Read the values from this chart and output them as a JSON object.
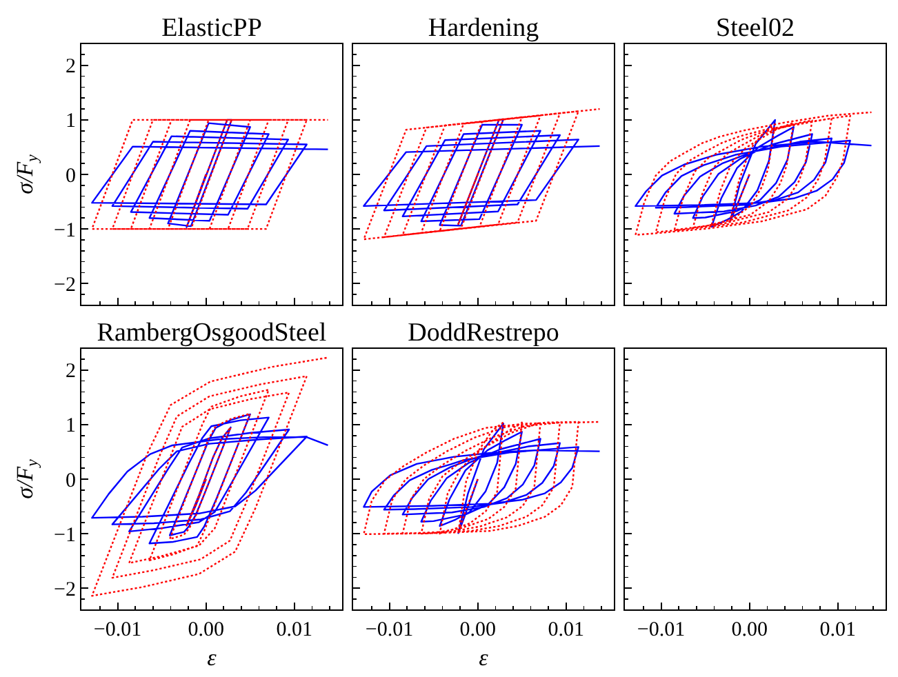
{
  "chart_data": [
    {
      "type": "line",
      "title": "ElasticPP",
      "ylabel": "σ/F$_{y}$",
      "tick_labels": "y",
      "xlim": [
        -0.0141,
        0.0154
      ],
      "ylim": [
        -2.39,
        2.39
      ],
      "xticks": [
        {
          "value": -0.012,
          "label": null
        },
        {
          "value": -0.01,
          "label": null
        },
        {
          "value": -0.008,
          "label": null
        },
        {
          "value": -0.006,
          "label": null
        },
        {
          "value": -0.004,
          "label": null
        },
        {
          "value": -0.002,
          "label": null
        },
        {
          "value": 0,
          "label": null
        },
        {
          "value": 0.002,
          "label": null
        },
        {
          "value": 0.004,
          "label": null
        },
        {
          "value": 0.006,
          "label": null
        },
        {
          "value": 0.008,
          "label": null
        },
        {
          "value": 0.01,
          "label": null
        },
        {
          "value": 0.012,
          "label": null
        },
        {
          "value": 0.014,
          "label": null
        }
      ],
      "yticks": [
        {
          "value": -2.2,
          "label": null
        },
        {
          "value": -2,
          "label": "−2"
        },
        {
          "value": -1.8,
          "label": null
        },
        {
          "value": -1.6,
          "label": null
        },
        {
          "value": -1.4,
          "label": null
        },
        {
          "value": -1.2,
          "label": null
        },
        {
          "value": -1,
          "label": "−1"
        },
        {
          "value": -0.8,
          "label": null
        },
        {
          "value": -0.6,
          "label": null
        },
        {
          "value": -0.4,
          "label": null
        },
        {
          "value": -0.2,
          "label": null
        },
        {
          "value": 0,
          "label": "0"
        },
        {
          "value": 0.2,
          "label": null
        },
        {
          "value": 0.4,
          "label": null
        },
        {
          "value": 0.6,
          "label": null
        },
        {
          "value": 0.8,
          "label": null
        },
        {
          "value": 1,
          "label": "1"
        },
        {
          "value": 1.2,
          "label": null
        },
        {
          "value": 1.4,
          "label": null
        },
        {
          "value": 1.6,
          "label": null
        },
        {
          "value": 1.8,
          "label": null
        },
        {
          "value": 2,
          "label": "2"
        },
        {
          "value": 2.2,
          "label": null
        }
      ],
      "x": [
        0,
        -0.0022,
        0.0024,
        0.0029,
        -0.0017,
        -0.0043,
        0.0003,
        0.005,
        0.0004,
        -0.0064,
        -0.0018,
        0.0071,
        0.0025,
        -0.0085,
        -0.0039,
        0.0093,
        0.0047,
        -0.0106,
        -0.006,
        0.0114,
        0.0068,
        -0.0129,
        -0.0083,
        0.0138
      ],
      "series": [
        {
          "color": "#0000ff",
          "line_style": "solid",
          "values": [
            0,
            -0.97,
            1,
            1,
            -0.95,
            -0.9,
            0.94,
            0.87,
            -0.85,
            -0.8,
            0.8,
            0.74,
            -0.74,
            -0.69,
            0.7,
            0.64,
            -0.63,
            -0.58,
            0.6,
            0.55,
            -0.55,
            -0.52,
            0.51,
            0.46
          ]
        },
        {
          "color": "#ff0000",
          "line_style": "dotted",
          "values": [
            0,
            -0.97,
            1,
            1,
            -1,
            -1,
            1,
            1,
            -1,
            -1,
            1,
            1,
            -1,
            -1,
            1,
            1,
            -1,
            -1,
            1,
            1,
            -1,
            -1,
            1,
            1
          ]
        }
      ]
    },
    {
      "type": "line",
      "title": "Hardening",
      "tick_labels": false,
      "xlim": [
        -0.0141,
        0.0154
      ],
      "ylim": [
        -2.39,
        2.39
      ],
      "xticks": [
        {
          "value": -0.012,
          "label": null
        },
        {
          "value": -0.01,
          "label": null
        },
        {
          "value": -0.008,
          "label": null
        },
        {
          "value": -0.006,
          "label": null
        },
        {
          "value": -0.004,
          "label": null
        },
        {
          "value": -0.002,
          "label": null
        },
        {
          "value": 0,
          "label": null
        },
        {
          "value": 0.002,
          "label": null
        },
        {
          "value": 0.004,
          "label": null
        },
        {
          "value": 0.006,
          "label": null
        },
        {
          "value": 0.008,
          "label": null
        },
        {
          "value": 0.01,
          "label": null
        },
        {
          "value": 0.012,
          "label": null
        },
        {
          "value": 0.014,
          "label": null
        }
      ],
      "yticks": [
        {
          "value": -2.2,
          "label": null
        },
        {
          "value": -2,
          "label": null
        },
        {
          "value": -1.8,
          "label": null
        },
        {
          "value": -1.6,
          "label": null
        },
        {
          "value": -1.4,
          "label": null
        },
        {
          "value": -1.2,
          "label": null
        },
        {
          "value": -1,
          "label": null
        },
        {
          "value": -0.8,
          "label": null
        },
        {
          "value": -0.6,
          "label": null
        },
        {
          "value": -0.4,
          "label": null
        },
        {
          "value": -0.2,
          "label": null
        },
        {
          "value": 0,
          "label": null
        },
        {
          "value": 0.2,
          "label": null
        },
        {
          "value": 0.4,
          "label": null
        },
        {
          "value": 0.6,
          "label": null
        },
        {
          "value": 0.8,
          "label": null
        },
        {
          "value": 1,
          "label": null
        },
        {
          "value": 1.2,
          "label": null
        },
        {
          "value": 1.4,
          "label": null
        },
        {
          "value": 1.6,
          "label": null
        },
        {
          "value": 1.8,
          "label": null
        },
        {
          "value": 2,
          "label": null
        },
        {
          "value": 2.2,
          "label": null
        }
      ],
      "x": [
        0,
        -0.0022,
        0.0024,
        0.0029,
        -0.0019,
        -0.0043,
        0.0005,
        0.005,
        0.0002,
        -0.0064,
        -0.0016,
        0.0071,
        0.0023,
        -0.0085,
        -0.0037,
        0.0093,
        0.0045,
        -0.0106,
        -0.0058,
        0.0114,
        0.0066,
        -0.0129,
        -0.0081,
        0.0138
      ],
      "series": [
        {
          "color": "#0000ff",
          "line_style": "solid",
          "values": [
            0,
            -0.91,
            1,
            1.01,
            -0.94,
            -0.93,
            0.91,
            0.91,
            -0.82,
            -0.86,
            0.74,
            0.8,
            -0.68,
            -0.77,
            0.63,
            0.72,
            -0.55,
            -0.66,
            0.52,
            0.64,
            -0.47,
            -0.58,
            0.41,
            0.52
          ]
        },
        {
          "color": "#ff0000",
          "line_style": "dotted",
          "values": [
            0,
            -0.91,
            1,
            1.01,
            -0.99,
            -1.04,
            0.97,
            1.05,
            -0.96,
            -1.07,
            0.93,
            1.08,
            -0.92,
            -1.11,
            0.9,
            1.12,
            -0.88,
            -1.15,
            0.86,
            1.16,
            -0.85,
            -1.19,
            0.82,
            1.2
          ]
        }
      ]
    },
    {
      "type": "line",
      "title": "Steel02",
      "tick_labels": false,
      "xlim": [
        -0.0141,
        0.0154
      ],
      "ylim": [
        -2.39,
        2.39
      ],
      "xticks": [
        {
          "value": -0.012,
          "label": null
        },
        {
          "value": -0.01,
          "label": null
        },
        {
          "value": -0.008,
          "label": null
        },
        {
          "value": -0.006,
          "label": null
        },
        {
          "value": -0.004,
          "label": null
        },
        {
          "value": -0.002,
          "label": null
        },
        {
          "value": 0,
          "label": null
        },
        {
          "value": 0.002,
          "label": null
        },
        {
          "value": 0.004,
          "label": null
        },
        {
          "value": 0.006,
          "label": null
        },
        {
          "value": 0.008,
          "label": null
        },
        {
          "value": 0.01,
          "label": null
        },
        {
          "value": 0.012,
          "label": null
        },
        {
          "value": 0.014,
          "label": null
        }
      ],
      "yticks": [
        {
          "value": -2.2,
          "label": null
        },
        {
          "value": -2,
          "label": null
        },
        {
          "value": -1.8,
          "label": null
        },
        {
          "value": -1.6,
          "label": null
        },
        {
          "value": -1.4,
          "label": null
        },
        {
          "value": -1.2,
          "label": null
        },
        {
          "value": -1,
          "label": null
        },
        {
          "value": -0.8,
          "label": null
        },
        {
          "value": -0.6,
          "label": null
        },
        {
          "value": -0.4,
          "label": null
        },
        {
          "value": -0.2,
          "label": null
        },
        {
          "value": 0,
          "label": null
        },
        {
          "value": 0.2,
          "label": null
        },
        {
          "value": 0.4,
          "label": null
        },
        {
          "value": 0.6,
          "label": null
        },
        {
          "value": 0.8,
          "label": null
        },
        {
          "value": 1,
          "label": null
        },
        {
          "value": 1.2,
          "label": null
        },
        {
          "value": 1.4,
          "label": null
        },
        {
          "value": 1.6,
          "label": null
        },
        {
          "value": 1.8,
          "label": null
        },
        {
          "value": 2,
          "label": null
        },
        {
          "value": 2.2,
          "label": null
        }
      ],
      "series": [
        {
          "color": "#0000ff",
          "line_style": "solid",
          "x": [
            0,
            -0.0015,
            -0.0022,
            -0.0011,
            0.0007,
            0.0029,
            0.0022,
            0.0009,
            -0.0009,
            -0.0025,
            -0.0043,
            -0.0032,
            -0.0014,
            0.0011,
            0.0032,
            0.005,
            0.0043,
            0.003,
            0.0012,
            -0.0014,
            -0.005,
            -0.0064,
            -0.0053,
            -0.0035,
            -0.001,
            0.0011,
            0.0026,
            0.0071,
            0.0064,
            0.0051,
            0.0033,
            0.0007,
            -0.0029,
            -0.0085,
            -0.0074,
            -0.0056,
            -0.0031,
            -0.001,
            0.0005,
            0.0057,
            0.0093,
            0.0086,
            0.0073,
            0.0055,
            0.0029,
            -0.0007,
            -0.0072,
            -0.0106,
            -0.0095,
            -0.0077,
            -0.0052,
            -0.0031,
            -0.0016,
            0.0036,
            0.0098,
            0.0114,
            0.0107,
            0.0094,
            0.0076,
            0.005,
            0.0014,
            -0.0051,
            -0.0129,
            -0.0117,
            -0.0099,
            -0.0074,
            -0.0038,
            0.0014,
            0.0076,
            0.0138
          ],
          "values": [
            0,
            -0.6,
            -0.86,
            -0.18,
            0.56,
            1,
            0.25,
            -0.29,
            -0.68,
            -0.83,
            -0.96,
            -0.44,
            0.12,
            0.51,
            0.71,
            0.87,
            0.27,
            -0.16,
            -0.47,
            -0.67,
            -0.79,
            -0.8,
            -0.41,
            0.01,
            0.29,
            0.45,
            0.55,
            0.74,
            0.23,
            -0.14,
            -0.41,
            -0.57,
            -0.68,
            -0.72,
            -0.39,
            -0.04,
            0.2,
            0.33,
            0.42,
            0.6,
            0.66,
            0.22,
            -0.1,
            -0.33,
            -0.47,
            -0.56,
            -0.6,
            -0.61,
            -0.33,
            -0.03,
            0.17,
            0.28,
            0.36,
            0.51,
            0.6,
            0.62,
            0.21,
            -0.09,
            -0.3,
            -0.44,
            -0.52,
            -0.56,
            -0.58,
            -0.31,
            -0.02,
            0.18,
            0.36,
            0.51,
            0.6,
            0.53
          ]
        },
        {
          "color": "#ff0000",
          "line_style": "dotted",
          "x": [
            0,
            -0.0015,
            -0.0022,
            -0.0012,
            0.0001,
            0.0017,
            0.0029,
            0.0026,
            0.0021,
            0.0014,
            0.0001,
            -0.002,
            -0.0043,
            -0.0033,
            -0.002,
            -0.0004,
            0.0012,
            0.0032,
            0.005,
            0.0047,
            0.0042,
            0.0035,
            0.0022,
            0.0001,
            -0.005,
            -0.0064,
            -0.0054,
            -0.0041,
            -0.0025,
            -0.0009,
            0.0011,
            0.0031,
            0.0057,
            0.0071,
            0.0068,
            0.0063,
            0.0056,
            0.0043,
            0.0022,
            -0.0029,
            -0.0085,
            -0.0075,
            -0.0062,
            -0.0046,
            -0.003,
            -0.001,
            0.001,
            0.0036,
            0.0083,
            0.0093,
            0.009,
            0.0085,
            0.0078,
            0.0065,
            0.0044,
            -0.0007,
            -0.0067,
            -0.0106,
            -0.0096,
            -0.0083,
            -0.0067,
            -0.0051,
            -0.0031,
            -0.0011,
            0.0015,
            0.0062,
            0.0114,
            0.0111,
            0.0106,
            0.0099,
            0.0086,
            0.0065,
            0.0014,
            -0.0046,
            -0.0106,
            -0.0129,
            -0.0119,
            -0.0106,
            -0.009,
            -0.0074,
            -0.0054,
            -0.0034,
            -0.0008,
            0.0039,
            0.009,
            0.0138
          ],
          "values": [
            0,
            -0.62,
            -0.85,
            -0.12,
            0.47,
            0.78,
            0.92,
            0.62,
            0.1,
            -0.23,
            -0.58,
            -0.83,
            -0.93,
            -0.3,
            0.22,
            0.49,
            0.65,
            0.84,
            0.95,
            0.66,
            0.16,
            -0.16,
            -0.49,
            -0.74,
            -0.95,
            -0.98,
            -0.38,
            0.12,
            0.38,
            0.53,
            0.71,
            0.83,
            0.95,
            0.99,
            0.7,
            0.2,
            -0.12,
            -0.45,
            -0.69,
            -0.9,
            -1.02,
            -0.43,
            0.05,
            0.31,
            0.45,
            0.63,
            0.75,
            0.86,
            1,
            1.03,
            0.74,
            0.24,
            -0.08,
            -0.42,
            -0.66,
            -0.88,
            -1,
            -1.06,
            -0.47,
            0.01,
            0.26,
            0.41,
            0.58,
            0.7,
            0.81,
            0.95,
            1.08,
            0.78,
            0.27,
            -0.05,
            -0.39,
            -0.64,
            -0.86,
            -0.99,
            -1.08,
            -1.11,
            -0.51,
            -0.02,
            0.24,
            0.39,
            0.57,
            0.69,
            0.8,
            0.95,
            1.08,
            1.14
          ]
        }
      ]
    },
    {
      "type": "line",
      "title": "RambergOsgoodSteel",
      "xlabel": "ε",
      "ylabel": "σ/F$_{y}$",
      "xlim": [
        -0.0141,
        0.0154
      ],
      "ylim": [
        -2.39,
        2.39
      ],
      "xticks": [
        {
          "value": -0.012,
          "label": null
        },
        {
          "value": -0.01,
          "label": "−0.01"
        },
        {
          "value": -0.008,
          "label": null
        },
        {
          "value": -0.006,
          "label": null
        },
        {
          "value": -0.004,
          "label": null
        },
        {
          "value": -0.002,
          "label": null
        },
        {
          "value": 0,
          "label": "0.00"
        },
        {
          "value": 0.002,
          "label": null
        },
        {
          "value": 0.004,
          "label": null
        },
        {
          "value": 0.006,
          "label": null
        },
        {
          "value": 0.008,
          "label": null
        },
        {
          "value": 0.01,
          "label": "0.01"
        },
        {
          "value": 0.012,
          "label": null
        },
        {
          "value": 0.014,
          "label": null
        }
      ],
      "yticks": [
        {
          "value": -2.2,
          "label": null
        },
        {
          "value": -2,
          "label": "−2"
        },
        {
          "value": -1.8,
          "label": null
        },
        {
          "value": -1.6,
          "label": null
        },
        {
          "value": -1.4,
          "label": null
        },
        {
          "value": -1.2,
          "label": null
        },
        {
          "value": -1,
          "label": "−1"
        },
        {
          "value": -0.8,
          "label": null
        },
        {
          "value": -0.6,
          "label": null
        },
        {
          "value": -0.4,
          "label": null
        },
        {
          "value": -0.2,
          "label": null
        },
        {
          "value": 0,
          "label": "0"
        },
        {
          "value": 0.2,
          "label": null
        },
        {
          "value": 0.4,
          "label": null
        },
        {
          "value": 0.6,
          "label": null
        },
        {
          "value": 0.8,
          "label": null
        },
        {
          "value": 1,
          "label": "1"
        },
        {
          "value": 1.2,
          "label": null
        },
        {
          "value": 1.4,
          "label": null
        },
        {
          "value": 1.6,
          "label": null
        },
        {
          "value": 1.8,
          "label": null
        },
        {
          "value": 2,
          "label": "2"
        },
        {
          "value": 2.2,
          "label": null
        }
      ],
      "series": [
        {
          "color": "#0000ff",
          "line_style": "solid",
          "x": [
            0,
            -0.0012,
            -0.0022,
            -0.0008,
            0.0008,
            0.0018,
            0.0028,
            -0.0002,
            -0.0012,
            -0.0019,
            -0.0025,
            -0.0041,
            -0.0008,
            0.0003,
            0.0011,
            0.0029,
            0.005,
            0.0011,
            -0.0002,
            -0.001,
            -0.0037,
            -0.0064,
            -0.0019,
            -0.0004,
            0.0006,
            0.0039,
            0.0071,
            0.0025,
            0.001,
            -0.0008,
            -0.005,
            -0.0087,
            -0.0042,
            -0.0027,
            0.0004,
            0.0051,
            0.0094,
            0.0045,
            0.0027,
            -0.0006,
            -0.0059,
            -0.0106,
            -0.0053,
            -0.0033,
            0.0004,
            0.0062,
            0.0114,
            0.0056,
            0.0033,
            -0.0008,
            -0.0072,
            -0.0129,
            -0.011,
            -0.0089,
            -0.0063,
            -0.0038,
            0.0014,
            0.0065,
            0.0114,
            0.0138
          ],
          "values": [
            0,
            -0.5,
            -0.85,
            -0.3,
            0.4,
            0.75,
            0.95,
            -0.28,
            -0.67,
            -0.86,
            -0.97,
            -1.03,
            0.27,
            0.71,
            0.94,
            1.09,
            1.19,
            -0.39,
            -0.87,
            -1.06,
            -1.15,
            -1.18,
            0.3,
            0.76,
            0.97,
            1.08,
            1.13,
            -0.18,
            -0.6,
            -0.79,
            -0.9,
            -0.96,
            0.21,
            0.58,
            0.75,
            0.85,
            0.91,
            -0.25,
            -0.59,
            -0.74,
            -0.81,
            -0.83,
            0.19,
            0.51,
            0.65,
            0.73,
            0.78,
            -0.21,
            -0.5,
            -0.63,
            -0.69,
            -0.71,
            -0.27,
            0.14,
            0.46,
            0.62,
            0.73,
            0.77,
            0.77,
            0.62
          ]
        },
        {
          "color": "#ff0000",
          "line_style": "dotted",
          "x": [
            0,
            -0.0012,
            -0.0022,
            -0.0008,
            0.0008,
            0.0018,
            0.0028,
            -0.0002,
            -0.0012,
            -0.0019,
            -0.0025,
            -0.0041,
            -0.0008,
            0.0003,
            0.0011,
            0.0029,
            0.005,
            0.0011,
            -0.0002,
            -0.001,
            -0.0037,
            -0.0064,
            -0.0019,
            -0.0004,
            0.0006,
            0.0039,
            0.0071,
            0.0025,
            0.001,
            -0.0008,
            -0.005,
            -0.0087,
            -0.0042,
            -0.0027,
            0.0004,
            0.0051,
            0.0094,
            0.0045,
            0.0027,
            -0.0006,
            -0.0059,
            -0.0106,
            -0.0053,
            -0.0033,
            0.0004,
            0.0062,
            0.0114,
            0.0056,
            0.0033,
            -0.0008,
            -0.0072,
            -0.0129,
            -0.0066,
            -0.004,
            0.0005,
            0.0075,
            0.0138
          ],
          "values": [
            0,
            -0.5,
            -0.85,
            -0.3,
            0.4,
            0.75,
            0.95,
            -0.28,
            -0.69,
            -0.9,
            -1.02,
            -1.1,
            0.28,
            0.74,
            0.97,
            1.11,
            1.2,
            -0.41,
            -0.95,
            -1.22,
            -1.38,
            -1.49,
            0.39,
            1.01,
            1.33,
            1.52,
            1.64,
            -0.27,
            -0.9,
            -1.22,
            -1.41,
            -1.54,
            0.34,
            0.96,
            1.28,
            1.47,
            1.59,
            -0.45,
            -1.13,
            -1.47,
            -1.67,
            -1.81,
            0.41,
            1.15,
            1.52,
            1.74,
            1.89,
            -0.53,
            -1.33,
            -1.74,
            -1.98,
            -2.14,
            0.48,
            1.36,
            1.79,
            2.06,
            2.23
          ]
        }
      ]
    },
    {
      "type": "line",
      "title": "DoddRestrepo",
      "xlabel": "ε",
      "tick_labels": "x",
      "xlim": [
        -0.0141,
        0.0154
      ],
      "ylim": [
        -2.39,
        2.39
      ],
      "xticks": [
        {
          "value": -0.012,
          "label": null
        },
        {
          "value": -0.01,
          "label": "−0.01"
        },
        {
          "value": -0.008,
          "label": null
        },
        {
          "value": -0.006,
          "label": null
        },
        {
          "value": -0.004,
          "label": null
        },
        {
          "value": -0.002,
          "label": null
        },
        {
          "value": 0,
          "label": "0.00"
        },
        {
          "value": 0.002,
          "label": null
        },
        {
          "value": 0.004,
          "label": null
        },
        {
          "value": 0.006,
          "label": null
        },
        {
          "value": 0.008,
          "label": null
        },
        {
          "value": 0.01,
          "label": "0.01"
        },
        {
          "value": 0.012,
          "label": null
        },
        {
          "value": 0.014,
          "label": null
        }
      ],
      "yticks": [
        {
          "value": -2.2,
          "label": null
        },
        {
          "value": -2,
          "label": null
        },
        {
          "value": -1.8,
          "label": null
        },
        {
          "value": -1.6,
          "label": null
        },
        {
          "value": -1.4,
          "label": null
        },
        {
          "value": -1.2,
          "label": null
        },
        {
          "value": -1,
          "label": null
        },
        {
          "value": -0.8,
          "label": null
        },
        {
          "value": -0.6,
          "label": null
        },
        {
          "value": -0.4,
          "label": null
        },
        {
          "value": -0.2,
          "label": null
        },
        {
          "value": 0,
          "label": null
        },
        {
          "value": 0.2,
          "label": null
        },
        {
          "value": 0.4,
          "label": null
        },
        {
          "value": 0.6,
          "label": null
        },
        {
          "value": 0.8,
          "label": null
        },
        {
          "value": 1,
          "label": null
        },
        {
          "value": 1.2,
          "label": null
        },
        {
          "value": 1.4,
          "label": null
        },
        {
          "value": 1.6,
          "label": null
        },
        {
          "value": 1.8,
          "label": null
        },
        {
          "value": 2,
          "label": null
        },
        {
          "value": 2.2,
          "label": null
        }
      ],
      "series": [
        {
          "color": "#0000ff",
          "line_style": "solid",
          "x": [
            0,
            -0.0015,
            -0.0022,
            -0.0011,
            0.0007,
            0.0029,
            0.0022,
            0.0009,
            -0.0009,
            -0.0025,
            -0.0043,
            -0.0032,
            -0.0014,
            0.0011,
            0.0032,
            0.005,
            0.0043,
            0.003,
            0.0012,
            -0.0014,
            -0.005,
            -0.0064,
            -0.0053,
            -0.0035,
            -0.001,
            0.0011,
            0.0026,
            0.0071,
            0.0064,
            0.0051,
            0.0033,
            0.0007,
            -0.0029,
            -0.0085,
            -0.0074,
            -0.0056,
            -0.0031,
            -0.001,
            0.0005,
            0.0057,
            0.0093,
            0.0086,
            0.0073,
            0.0055,
            0.0029,
            -0.0007,
            -0.0072,
            -0.0106,
            -0.0095,
            -0.0077,
            -0.0052,
            -0.0031,
            -0.0016,
            0.0036,
            0.0098,
            0.0114,
            0.0107,
            0.0094,
            0.0076,
            0.005,
            0.0014,
            -0.0051,
            -0.0129,
            -0.012,
            -0.0099,
            -0.0069,
            -0.0027,
            0.0014,
            0.0065,
            0.0138
          ],
          "values": [
            0,
            -0.69,
            -0.99,
            -0.26,
            0.55,
            1.02,
            0.3,
            -0.22,
            -0.6,
            -0.74,
            -0.86,
            -0.37,
            0.16,
            0.53,
            0.72,
            0.87,
            0.28,
            -0.15,
            -0.46,
            -0.65,
            -0.77,
            -0.78,
            -0.39,
            0.02,
            0.3,
            0.45,
            0.55,
            0.74,
            0.25,
            -0.1,
            -0.35,
            -0.51,
            -0.61,
            -0.65,
            -0.34,
            0,
            0.22,
            0.35,
            0.43,
            0.6,
            0.66,
            0.24,
            -0.07,
            -0.29,
            -0.43,
            -0.51,
            -0.55,
            -0.56,
            -0.3,
            -0.02,
            0.17,
            0.27,
            0.35,
            0.49,
            0.57,
            0.59,
            0.21,
            -0.06,
            -0.26,
            -0.38,
            -0.45,
            -0.49,
            -0.51,
            -0.23,
            0.07,
            0.28,
            0.41,
            0.48,
            0.53,
            0.51
          ]
        },
        {
          "color": "#ff0000",
          "line_style": "dotted",
          "x": [
            0,
            -0.0015,
            -0.0022,
            -0.0013,
            0.0002,
            0.0017,
            0.0029,
            0.0026,
            0.0022,
            0.0009,
            -0.0009,
            -0.0026,
            -0.0043,
            -0.0034,
            -0.0019,
            0.0002,
            0.0028,
            0.005,
            0.0047,
            0.0043,
            0.003,
            0.0012,
            -0.0019,
            -0.005,
            -0.0064,
            -0.0055,
            -0.004,
            -0.0019,
            0.0007,
            0.0038,
            0.0071,
            0.0068,
            0.0064,
            0.0051,
            0.0033,
            0.0002,
            -0.0029,
            -0.0085,
            -0.0076,
            -0.0061,
            -0.004,
            -0.0014,
            0.0017,
            0.0053,
            0.0093,
            0.009,
            0.0086,
            0.0073,
            0.0055,
            0.0024,
            -0.0007,
            -0.0067,
            -0.0106,
            -0.0097,
            -0.0082,
            -0.0061,
            -0.0035,
            -0.0004,
            0.0032,
            0.0078,
            0.0114,
            0.0111,
            0.0107,
            0.0094,
            0.0076,
            0.0045,
            0.0014,
            -0.0046,
            -0.0129,
            -0.012,
            -0.0105,
            -0.0084,
            -0.0058,
            -0.0027,
            0.0009,
            0.0055,
            0.0138
          ],
          "values": [
            0,
            -0.64,
            -0.97,
            -0.03,
            0.55,
            0.9,
            1.04,
            0.51,
            -0.23,
            -0.59,
            -0.81,
            -0.91,
            -1,
            -0.26,
            0.2,
            0.52,
            0.82,
            1.04,
            0.53,
            -0.17,
            -0.51,
            -0.73,
            -0.9,
            -0.99,
            -1,
            -0.36,
            0.05,
            0.32,
            0.58,
            0.85,
            1.04,
            0.54,
            -0.15,
            -0.49,
            -0.7,
            -0.87,
            -0.96,
            -1,
            -0.38,
            0,
            0.26,
            0.52,
            0.77,
            0.97,
            1.04,
            0.54,
            -0.15,
            -0.48,
            -0.69,
            -0.86,
            -0.95,
            -0.99,
            -1,
            -0.39,
            -0.01,
            0.25,
            0.51,
            0.76,
            0.96,
            1.04,
            1.05,
            0.55,
            -0.14,
            -0.48,
            -0.69,
            -0.86,
            -0.95,
            -0.99,
            -1.01,
            -0.4,
            -0.02,
            0.24,
            0.49,
            0.74,
            0.94,
            1.02,
            1.05
          ]
        }
      ]
    },
    {
      "type": "line",
      "tick_labels": "x",
      "xlim": [
        -0.0141,
        0.0154
      ],
      "ylim": [
        -2.39,
        2.39
      ],
      "xticks": [
        {
          "value": -0.012,
          "label": null
        },
        {
          "value": -0.01,
          "label": "−0.01"
        },
        {
          "value": -0.008,
          "label": null
        },
        {
          "value": -0.006,
          "label": null
        },
        {
          "value": -0.004,
          "label": null
        },
        {
          "value": -0.002,
          "label": null
        },
        {
          "value": 0,
          "label": "0.00"
        },
        {
          "value": 0.002,
          "label": null
        },
        {
          "value": 0.004,
          "label": null
        },
        {
          "value": 0.006,
          "label": null
        },
        {
          "value": 0.008,
          "label": null
        },
        {
          "value": 0.01,
          "label": "0.01"
        },
        {
          "value": 0.012,
          "label": null
        },
        {
          "value": 0.014,
          "label": null
        }
      ],
      "yticks": [
        {
          "value": -2.2,
          "label": null
        },
        {
          "value": -2,
          "label": null
        },
        {
          "value": -1.8,
          "label": null
        },
        {
          "value": -1.6,
          "label": null
        },
        {
          "value": -1.4,
          "label": null
        },
        {
          "value": -1.2,
          "label": null
        },
        {
          "value": -1,
          "label": null
        },
        {
          "value": -0.8,
          "label": null
        },
        {
          "value": -0.6,
          "label": null
        },
        {
          "value": -0.4,
          "label": null
        },
        {
          "value": -0.2,
          "label": null
        },
        {
          "value": 0,
          "label": null
        },
        {
          "value": 0.2,
          "label": null
        },
        {
          "value": 0.4,
          "label": null
        },
        {
          "value": 0.6,
          "label": null
        },
        {
          "value": 0.8,
          "label": null
        },
        {
          "value": 1,
          "label": null
        },
        {
          "value": 1.2,
          "label": null
        },
        {
          "value": 1.4,
          "label": null
        },
        {
          "value": 1.6,
          "label": null
        },
        {
          "value": 1.8,
          "label": null
        },
        {
          "value": 2,
          "label": null
        },
        {
          "value": 2.2,
          "label": null
        }
      ]
    }
  ]
}
